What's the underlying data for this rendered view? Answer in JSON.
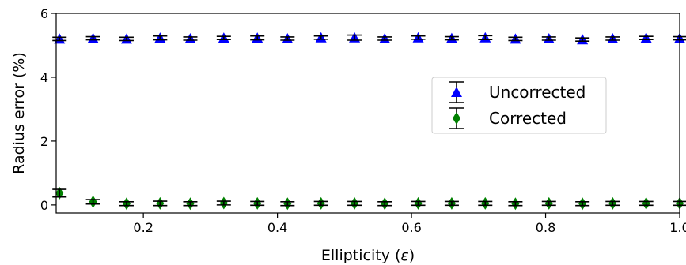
{
  "chart_data": {
    "type": "scatter",
    "xlabel": "Ellipticity (",
    "xlabel_symbol": "ε",
    "xlabel_close": ")",
    "ylabel": "Radius error (%)",
    "xlim": [
      0.07,
      1.0
    ],
    "ylim": [
      -0.25,
      6.0
    ],
    "xticks": [
      0.2,
      0.4,
      0.6,
      0.8,
      1.0
    ],
    "xtick_labels": [
      "0.2",
      "0.4",
      "0.6",
      "0.8",
      "1.0"
    ],
    "yticks": [
      0,
      2,
      4,
      6
    ],
    "ytick_labels": [
      "0",
      "2",
      "4",
      "6"
    ],
    "grid": false,
    "legend_position": "center-right",
    "x": [
      0.075,
      0.125,
      0.175,
      0.225,
      0.27,
      0.32,
      0.37,
      0.415,
      0.465,
      0.515,
      0.56,
      0.61,
      0.66,
      0.71,
      0.755,
      0.805,
      0.855,
      0.9,
      0.95,
      1.0
    ],
    "series": [
      {
        "name": "Uncorrected",
        "marker": "triangle-up",
        "color": "#0000ff",
        "values": [
          5.2,
          5.22,
          5.2,
          5.23,
          5.21,
          5.23,
          5.23,
          5.21,
          5.24,
          5.24,
          5.21,
          5.24,
          5.22,
          5.24,
          5.2,
          5.21,
          5.18,
          5.21,
          5.23,
          5.22
        ],
        "errors": [
          0.05,
          0.05,
          0.05,
          0.06,
          0.05,
          0.05,
          0.06,
          0.05,
          0.05,
          0.08,
          0.05,
          0.05,
          0.05,
          0.06,
          0.05,
          0.05,
          0.05,
          0.05,
          0.05,
          0.05
        ]
      },
      {
        "name": "Corrected",
        "marker": "diamond",
        "color": "#008000",
        "values": [
          0.37,
          0.1,
          0.04,
          0.05,
          0.04,
          0.06,
          0.05,
          0.04,
          0.05,
          0.05,
          0.04,
          0.05,
          0.05,
          0.05,
          0.04,
          0.05,
          0.04,
          0.05,
          0.05,
          0.05
        ],
        "errors": [
          0.12,
          0.07,
          0.06,
          0.07,
          0.06,
          0.06,
          0.06,
          0.06,
          0.06,
          0.06,
          0.06,
          0.06,
          0.06,
          0.06,
          0.06,
          0.06,
          0.06,
          0.06,
          0.06,
          0.06
        ]
      }
    ]
  }
}
